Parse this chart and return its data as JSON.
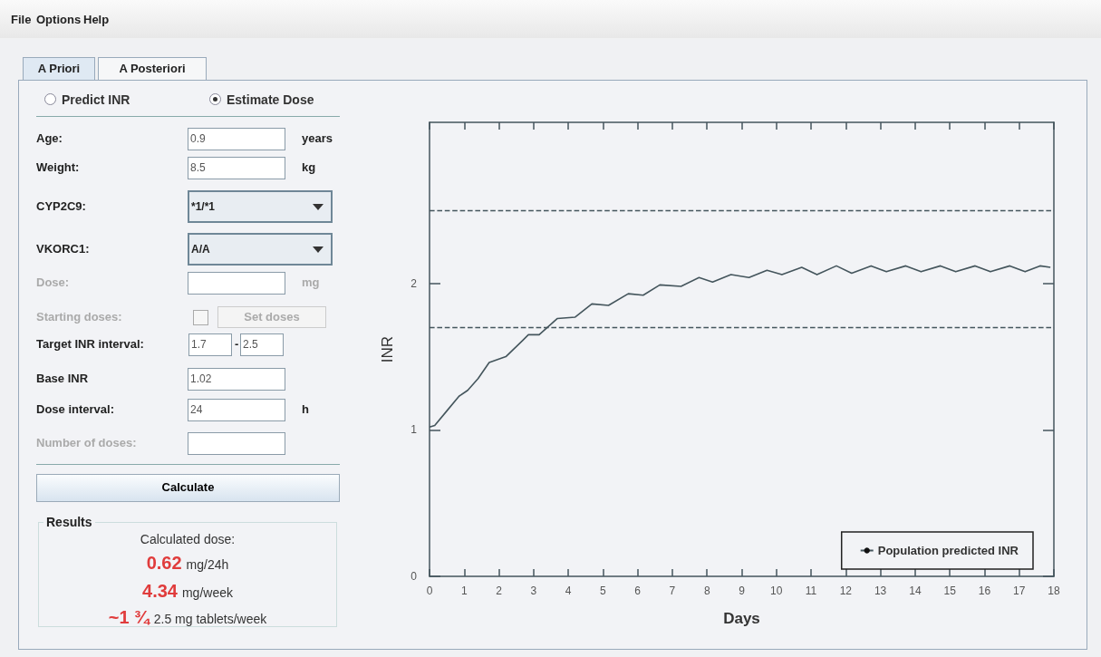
{
  "chart_data": {
    "type": "line",
    "xlabel": "Days",
    "ylabel": "INR",
    "annotations": [
      "File",
      "Options",
      "Help",
      "A Priori",
      "A Posteriori",
      "Predict INR",
      "Estimate Dose",
      "Age:",
      "0.9",
      "years",
      "Weight:",
      "8.5",
      "kg",
      "CYP2C9:",
      "*1/*1",
      "VKORC1:",
      "A/A",
      "Dose:",
      "mg",
      "Starting doses:",
      "Set doses",
      "Target INR interval:",
      "1.7",
      "-",
      "2.5",
      "Base INR",
      "1.02",
      "Dose interval:",
      "24",
      "h",
      "Number of doses:",
      "Calculate",
      "Results",
      "Calculated dose:",
      "0.62",
      "mg/24h",
      "4.34",
      "mg/week",
      "~1 ¾",
      "2.5 mg tablets/week"
    ],
    "x": [
      0,
      0.15,
      0.5,
      0.85,
      1.1,
      1.4,
      1.72,
      2.2,
      2.68,
      2.85,
      3.16,
      3.68,
      4.2,
      4.68,
      5.16,
      5.73,
      6.16,
      6.64,
      7.25,
      7.77,
      8.16,
      8.69,
      9.21,
      9.73,
      10.16,
      10.73,
      11.17,
      11.73,
      12.17,
      12.73,
      13.17,
      13.73,
      14.17,
      14.73,
      15.17,
      15.73,
      16.17,
      16.73,
      17.17,
      17.6,
      17.9
    ],
    "series": [
      {
        "name": "Population predicted INR",
        "color": "#44555c",
        "values": [
          1.02,
          1.03,
          1.13,
          1.23,
          1.27,
          1.35,
          1.46,
          1.5,
          1.61,
          1.65,
          1.65,
          1.76,
          1.77,
          1.86,
          1.85,
          1.93,
          1.92,
          1.99,
          1.98,
          2.04,
          2.01,
          2.06,
          2.04,
          2.09,
          2.06,
          2.11,
          2.06,
          2.12,
          2.07,
          2.12,
          2.08,
          2.12,
          2.08,
          2.12,
          2.08,
          2.12,
          2.08,
          2.12,
          2.08,
          2.12,
          2.11
        ]
      }
    ],
    "xlim": [
      0,
      18
    ],
    "ylim": [
      0,
      3.1
    ],
    "xticks": [
      0,
      1,
      2,
      3,
      4,
      5,
      6,
      7,
      8,
      9,
      10,
      11,
      12,
      13,
      14,
      15,
      16,
      17,
      18
    ],
    "yticks": [
      0,
      1,
      2
    ],
    "ref_lines": [
      {
        "axis": "y",
        "value": 1.7,
        "line_style": "dashed",
        "color": "#44555c"
      },
      {
        "axis": "y",
        "value": 2.5,
        "line_style": "dashed",
        "color": "#44555c"
      }
    ],
    "legend": "bottom right"
  }
}
